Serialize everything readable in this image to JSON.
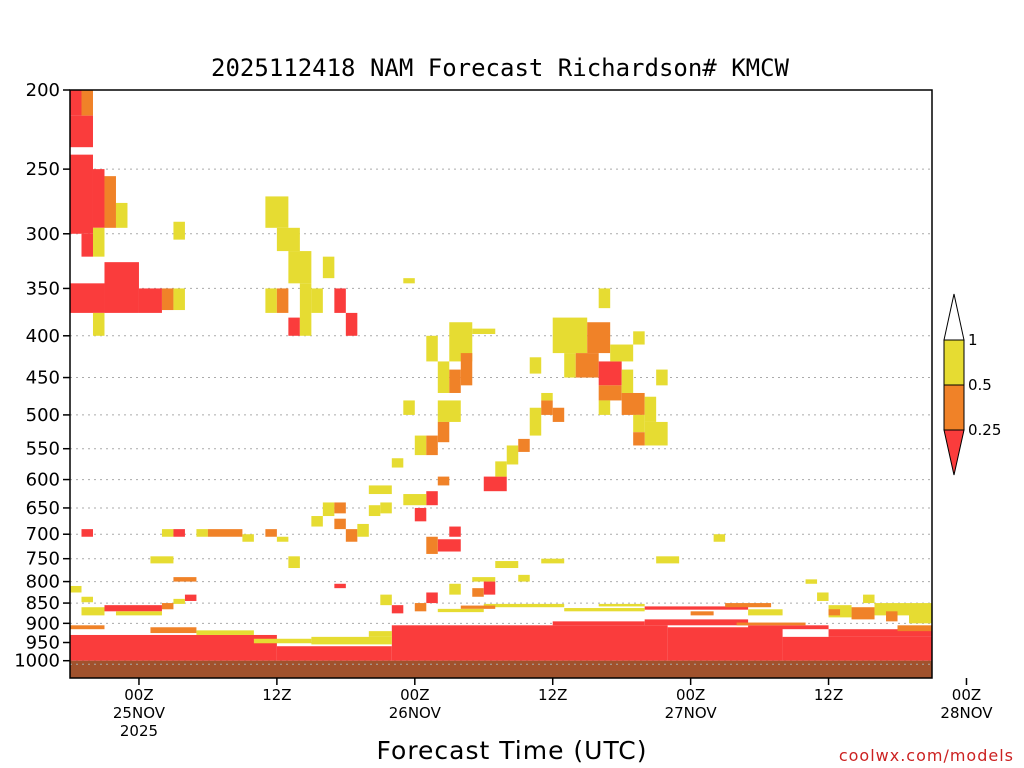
{
  "chart_data": {
    "type": "heatmap",
    "title": "2025112418 NAM Forecast Richardson# KMCW",
    "xlabel": "Forecast Time (UTC)",
    "ylabel": "Pressure (hPa)",
    "credit": "coolwx.com/models",
    "xlim_hours": [
      -6,
      69
    ],
    "ylim_hpa": [
      1050,
      200
    ],
    "y_ticks": [
      {
        "value": 200,
        "label": "200"
      },
      {
        "value": 250,
        "label": "250"
      },
      {
        "value": 300,
        "label": "300"
      },
      {
        "value": 350,
        "label": "350"
      },
      {
        "value": 400,
        "label": "400"
      },
      {
        "value": 450,
        "label": "450"
      },
      {
        "value": 500,
        "label": "500"
      },
      {
        "value": 550,
        "label": "550"
      },
      {
        "value": 600,
        "label": "600"
      },
      {
        "value": 650,
        "label": "650"
      },
      {
        "value": 700,
        "label": "700"
      },
      {
        "value": 750,
        "label": "750"
      },
      {
        "value": 800,
        "label": "800"
      },
      {
        "value": 850,
        "label": "850"
      },
      {
        "value": 900,
        "label": "900"
      },
      {
        "value": 950,
        "label": "950"
      },
      {
        "value": 1000,
        "label": "1000"
      }
    ],
    "x_ticks": [
      {
        "hour": 0,
        "lines": [
          "00Z",
          "25NOV",
          "2025"
        ]
      },
      {
        "hour": 12,
        "lines": [
          "12Z"
        ]
      },
      {
        "hour": 24,
        "lines": [
          "00Z",
          "26NOV"
        ]
      },
      {
        "hour": 36,
        "lines": [
          "12Z"
        ]
      },
      {
        "hour": 48,
        "lines": [
          "00Z",
          "27NOV"
        ]
      },
      {
        "hour": 60,
        "lines": [
          "12Z"
        ]
      },
      {
        "hour": 72,
        "lines": [
          "00Z",
          "28NOV"
        ]
      }
    ],
    "colorbar": {
      "levels": [
        "1",
        "0.5",
        "0.25"
      ],
      "bins": [
        {
          "label": "> 1",
          "color": "#ffffff"
        },
        {
          "label": "0.5 - 1",
          "color": "#e6dc32"
        },
        {
          "label": "0.25 - 0.5",
          "color": "#f08228"
        },
        {
          "label": "< 0.25",
          "color": "#fa3c3c"
        }
      ]
    },
    "colors": {
      "low": "#fa3c3c",
      "mid": "#f08228",
      "high": "#e6dc32",
      "ground": "#a0522d",
      "grid": "#aaaaaa"
    },
    "ground_level_hpa": 1010,
    "cells": [
      {
        "h0": -6,
        "h1": -5,
        "p0": 200,
        "p1": 215,
        "c": "low"
      },
      {
        "h0": -5,
        "h1": -4,
        "p0": 200,
        "p1": 215,
        "c": "mid"
      },
      {
        "h0": -6,
        "h1": -4,
        "p0": 215,
        "p1": 235,
        "c": "low"
      },
      {
        "h0": -6,
        "h1": -4,
        "p0": 240,
        "p1": 300,
        "c": "low"
      },
      {
        "h0": -4,
        "h1": -3,
        "p0": 250,
        "p1": 295,
        "c": "low"
      },
      {
        "h0": -3,
        "h1": -2,
        "p0": 255,
        "p1": 295,
        "c": "mid"
      },
      {
        "h0": -2,
        "h1": -1,
        "p0": 275,
        "p1": 295,
        "c": "high"
      },
      {
        "h0": -4,
        "h1": -3,
        "p0": 295,
        "p1": 320,
        "c": "high"
      },
      {
        "h0": -5,
        "h1": -4,
        "p0": 300,
        "p1": 320,
        "c": "low"
      },
      {
        "h0": -6,
        "h1": -3,
        "p0": 345,
        "p1": 375,
        "c": "low"
      },
      {
        "h0": -3,
        "h1": 0,
        "p0": 325,
        "p1": 375,
        "c": "low"
      },
      {
        "h0": 0,
        "h1": 2,
        "p0": 350,
        "p1": 375,
        "c": "low"
      },
      {
        "h0": 2,
        "h1": 3,
        "p0": 350,
        "p1": 372,
        "c": "mid"
      },
      {
        "h0": 3,
        "h1": 4,
        "p0": 350,
        "p1": 372,
        "c": "high"
      },
      {
        "h0": -4,
        "h1": -3,
        "p0": 375,
        "p1": 400,
        "c": "high"
      },
      {
        "h0": 3,
        "h1": 4,
        "p0": 290,
        "p1": 305,
        "c": "high"
      },
      {
        "h0": 11,
        "h1": 13,
        "p0": 270,
        "p1": 295,
        "c": "high"
      },
      {
        "h0": 12,
        "h1": 14,
        "p0": 295,
        "p1": 315,
        "c": "high"
      },
      {
        "h0": 13,
        "h1": 15,
        "p0": 315,
        "p1": 345,
        "c": "high"
      },
      {
        "h0": 16,
        "h1": 17,
        "p0": 320,
        "p1": 340,
        "c": "high"
      },
      {
        "h0": 11,
        "h1": 12,
        "p0": 350,
        "p1": 375,
        "c": "high"
      },
      {
        "h0": 12,
        "h1": 13,
        "p0": 350,
        "p1": 375,
        "c": "mid"
      },
      {
        "h0": 13,
        "h1": 14,
        "p0": 380,
        "p1": 400,
        "c": "low"
      },
      {
        "h0": 14,
        "h1": 15,
        "p0": 345,
        "p1": 400,
        "c": "high"
      },
      {
        "h0": 15,
        "h1": 16,
        "p0": 350,
        "p1": 375,
        "c": "high"
      },
      {
        "h0": 17,
        "h1": 18,
        "p0": 350,
        "p1": 375,
        "c": "low"
      },
      {
        "h0": 18,
        "h1": 19,
        "p0": 375,
        "p1": 400,
        "c": "low"
      },
      {
        "h0": 23,
        "h1": 24,
        "p0": 340,
        "p1": 345,
        "c": "high"
      },
      {
        "h0": 25,
        "h1": 26,
        "p0": 400,
        "p1": 430,
        "c": "high"
      },
      {
        "h0": 26,
        "h1": 27,
        "p0": 430,
        "p1": 470,
        "c": "high"
      },
      {
        "h0": 27,
        "h1": 29,
        "p0": 385,
        "p1": 430,
        "c": "high"
      },
      {
        "h0": 28,
        "h1": 29,
        "p0": 420,
        "p1": 460,
        "c": "mid"
      },
      {
        "h0": 27,
        "h1": 28,
        "p0": 440,
        "p1": 470,
        "c": "mid"
      },
      {
        "h0": 26,
        "h1": 28,
        "p0": 480,
        "p1": 510,
        "c": "high"
      },
      {
        "h0": 26,
        "h1": 27,
        "p0": 510,
        "p1": 540,
        "c": "mid"
      },
      {
        "h0": 23,
        "h1": 24,
        "p0": 480,
        "p1": 500,
        "c": "high"
      },
      {
        "h0": 24,
        "h1": 25,
        "p0": 530,
        "p1": 560,
        "c": "high"
      },
      {
        "h0": 25,
        "h1": 26,
        "p0": 530,
        "p1": 560,
        "c": "mid"
      },
      {
        "h0": 22,
        "h1": 23,
        "p0": 565,
        "p1": 580,
        "c": "high"
      },
      {
        "h0": 26,
        "h1": 27,
        "p0": 595,
        "p1": 610,
        "c": "mid"
      },
      {
        "h0": 25,
        "h1": 26,
        "p0": 620,
        "p1": 645,
        "c": "low"
      },
      {
        "h0": 24,
        "h1": 25,
        "p0": 650,
        "p1": 675,
        "c": "low"
      },
      {
        "h0": 27,
        "h1": 28,
        "p0": 685,
        "p1": 705,
        "c": "low"
      },
      {
        "h0": 26,
        "h1": 28,
        "p0": 710,
        "p1": 735,
        "c": "low"
      },
      {
        "h0": 25,
        "h1": 26,
        "p0": 705,
        "p1": 740,
        "c": "mid"
      },
      {
        "h0": 23,
        "h1": 25,
        "p0": 625,
        "p1": 645,
        "c": "high"
      },
      {
        "h0": 30,
        "h1": 32,
        "p0": 595,
        "p1": 620,
        "c": "low"
      },
      {
        "h0": 31,
        "h1": 32,
        "p0": 570,
        "p1": 595,
        "c": "high"
      },
      {
        "h0": 32,
        "h1": 33,
        "p0": 545,
        "p1": 575,
        "c": "high"
      },
      {
        "h0": 33,
        "h1": 34,
        "p0": 535,
        "p1": 555,
        "c": "mid"
      },
      {
        "h0": 34,
        "h1": 35,
        "p0": 490,
        "p1": 530,
        "c": "high"
      },
      {
        "h0": 35,
        "h1": 36,
        "p0": 480,
        "p1": 500,
        "c": "mid"
      },
      {
        "h0": 36,
        "h1": 37,
        "p0": 490,
        "p1": 510,
        "c": "mid"
      },
      {
        "h0": 35,
        "h1": 36,
        "p0": 470,
        "p1": 480,
        "c": "high"
      },
      {
        "h0": 34,
        "h1": 35,
        "p0": 425,
        "p1": 445,
        "c": "high"
      },
      {
        "h0": 36,
        "h1": 39,
        "p0": 380,
        "p1": 420,
        "c": "high"
      },
      {
        "h0": 37,
        "h1": 38,
        "p0": 420,
        "p1": 450,
        "c": "high"
      },
      {
        "h0": 38,
        "h1": 40,
        "p0": 420,
        "p1": 450,
        "c": "mid"
      },
      {
        "h0": 39,
        "h1": 41,
        "p0": 385,
        "p1": 420,
        "c": "mid"
      },
      {
        "h0": 40,
        "h1": 42,
        "p0": 430,
        "p1": 460,
        "c": "low"
      },
      {
        "h0": 41,
        "h1": 43,
        "p0": 410,
        "p1": 430,
        "c": "high"
      },
      {
        "h0": 40,
        "h1": 42,
        "p0": 460,
        "p1": 480,
        "c": "mid"
      },
      {
        "h0": 42,
        "h1": 44,
        "p0": 470,
        "p1": 500,
        "c": "mid"
      },
      {
        "h0": 40,
        "h1": 41,
        "p0": 480,
        "p1": 500,
        "c": "high"
      },
      {
        "h0": 42,
        "h1": 43,
        "p0": 440,
        "p1": 470,
        "c": "high"
      },
      {
        "h0": 44,
        "h1": 45,
        "p0": 475,
        "p1": 510,
        "c": "high"
      },
      {
        "h0": 43,
        "h1": 44,
        "p0": 500,
        "p1": 525,
        "c": "high"
      },
      {
        "h0": 44,
        "h1": 46,
        "p0": 510,
        "p1": 545,
        "c": "high"
      },
      {
        "h0": 43,
        "h1": 44,
        "p0": 525,
        "p1": 545,
        "c": "mid"
      },
      {
        "h0": 40,
        "h1": 41,
        "p0": 350,
        "p1": 370,
        "c": "high"
      },
      {
        "h0": 43,
        "h1": 44,
        "p0": 395,
        "p1": 410,
        "c": "high"
      },
      {
        "h0": 45,
        "h1": 46,
        "p0": 440,
        "p1": 460,
        "c": "high"
      },
      {
        "h0": 29,
        "h1": 31,
        "p0": 392,
        "p1": 398,
        "c": "high"
      },
      {
        "h0": 17,
        "h1": 18,
        "p0": 670,
        "p1": 690,
        "c": "mid"
      },
      {
        "h0": 18,
        "h1": 19,
        "p0": 690,
        "p1": 715,
        "c": "mid"
      },
      {
        "h0": 19,
        "h1": 20,
        "p0": 680,
        "p1": 705,
        "c": "high"
      },
      {
        "h0": 16,
        "h1": 17,
        "p0": 640,
        "p1": 665,
        "c": "high"
      },
      {
        "h0": 17,
        "h1": 18,
        "p0": 640,
        "p1": 660,
        "c": "mid"
      },
      {
        "h0": 20,
        "h1": 21,
        "p0": 645,
        "p1": 665,
        "c": "high"
      },
      {
        "h0": 21,
        "h1": 22,
        "p0": 640,
        "p1": 660,
        "c": "high"
      },
      {
        "h0": 15,
        "h1": 16,
        "p0": 665,
        "p1": 685,
        "c": "high"
      },
      {
        "h0": 20,
        "h1": 22,
        "p0": 610,
        "p1": 625,
        "c": "high"
      },
      {
        "h0": 13,
        "h1": 14,
        "p0": 745,
        "p1": 770,
        "c": "high"
      },
      {
        "h0": 17,
        "h1": 18,
        "p0": 805,
        "p1": 815,
        "c": "low"
      },
      {
        "h0": -5,
        "h1": -4,
        "p0": 690,
        "p1": 705,
        "c": "low"
      },
      {
        "h0": 2,
        "h1": 3,
        "p0": 690,
        "p1": 705,
        "c": "high"
      },
      {
        "h0": 3,
        "h1": 4,
        "p0": 690,
        "p1": 705,
        "c": "low"
      },
      {
        "h0": 5,
        "h1": 6,
        "p0": 690,
        "p1": 705,
        "c": "high"
      },
      {
        "h0": 6,
        "h1": 9,
        "p0": 690,
        "p1": 705,
        "c": "mid"
      },
      {
        "h0": 9,
        "h1": 10,
        "p0": 700,
        "p1": 715,
        "c": "high"
      },
      {
        "h0": 11,
        "h1": 12,
        "p0": 690,
        "p1": 705,
        "c": "mid"
      },
      {
        "h0": 12,
        "h1": 13,
        "p0": 705,
        "p1": 715,
        "c": "high"
      },
      {
        "h0": 1,
        "h1": 3,
        "p0": 745,
        "p1": 760,
        "c": "high"
      },
      {
        "h0": 3,
        "h1": 5,
        "p0": 790,
        "p1": 800,
        "c": "mid"
      },
      {
        "h0": 4,
        "h1": 5,
        "p0": 830,
        "p1": 845,
        "c": "low"
      },
      {
        "h0": 45,
        "h1": 47,
        "p0": 745,
        "p1": 760,
        "c": "high"
      },
      {
        "h0": 50,
        "h1": 51,
        "p0": 700,
        "p1": 715,
        "c": "high"
      },
      {
        "h0": 31,
        "h1": 33,
        "p0": 755,
        "p1": 770,
        "c": "high"
      },
      {
        "h0": 33,
        "h1": 34,
        "p0": 785,
        "p1": 800,
        "c": "high"
      },
      {
        "h0": 35,
        "h1": 37,
        "p0": 750,
        "p1": 760,
        "c": "high"
      },
      {
        "h0": 29,
        "h1": 31,
        "p0": 790,
        "p1": 800,
        "c": "high"
      },
      {
        "h0": 30,
        "h1": 31,
        "p0": 800,
        "p1": 830,
        "c": "low"
      },
      {
        "h0": 29,
        "h1": 30,
        "p0": 815,
        "p1": 835,
        "c": "mid"
      },
      {
        "h0": 27,
        "h1": 28,
        "p0": 805,
        "p1": 830,
        "c": "high"
      },
      {
        "h0": 21,
        "h1": 22,
        "p0": 830,
        "p1": 855,
        "c": "high"
      },
      {
        "h0": 22,
        "h1": 23,
        "p0": 855,
        "p1": 875,
        "c": "low"
      },
      {
        "h0": 24,
        "h1": 25,
        "p0": 850,
        "p1": 870,
        "c": "mid"
      },
      {
        "h0": 25,
        "h1": 26,
        "p0": 825,
        "p1": 850,
        "c": "low"
      },
      {
        "h0": 62,
        "h1": 64,
        "p0": 860,
        "p1": 890,
        "c": "mid"
      },
      {
        "h0": 64,
        "h1": 67,
        "p0": 850,
        "p1": 880,
        "c": "high"
      },
      {
        "h0": 67,
        "h1": 71,
        "p0": 850,
        "p1": 900,
        "c": "high"
      },
      {
        "h0": 71,
        "h1": 74,
        "p0": 860,
        "p1": 905,
        "c": "high"
      },
      {
        "h0": 74,
        "h1": 77,
        "p0": 875,
        "p1": 905,
        "c": "high"
      },
      {
        "h0": 60,
        "h1": 62,
        "p0": 855,
        "p1": 885,
        "c": "high"
      },
      {
        "h0": 59,
        "h1": 60,
        "p0": 825,
        "p1": 845,
        "c": "high"
      },
      {
        "h0": 58,
        "h1": 59,
        "p0": 795,
        "p1": 805,
        "c": "high"
      },
      {
        "h0": 63,
        "h1": 64,
        "p0": 830,
        "p1": 850,
        "c": "high"
      },
      {
        "h0": 65,
        "h1": 66,
        "p0": 870,
        "p1": 895,
        "c": "mid"
      },
      {
        "h0": 60,
        "h1": 61,
        "p0": 865,
        "p1": 880,
        "c": "mid"
      },
      {
        "h0": 73,
        "h1": 74,
        "p0": 880,
        "p1": 895,
        "c": "mid"
      },
      {
        "h0": 44,
        "h1": 53,
        "p0": 858,
        "p1": 866,
        "c": "low"
      },
      {
        "h0": 37,
        "h1": 44,
        "p0": 862,
        "p1": 870,
        "c": "high"
      },
      {
        "h0": 40,
        "h1": 44,
        "p0": 852,
        "p1": 858,
        "c": "high"
      },
      {
        "h0": 51,
        "h1": 55,
        "p0": 850,
        "p1": 860,
        "c": "mid"
      },
      {
        "h0": 53,
        "h1": 56,
        "p0": 865,
        "p1": 880,
        "c": "high"
      },
      {
        "h0": 48,
        "h1": 50,
        "p0": 870,
        "p1": 880,
        "c": "mid"
      },
      {
        "h0": 30,
        "h1": 37,
        "p0": 852,
        "p1": 860,
        "c": "high"
      },
      {
        "h0": 28,
        "h1": 31,
        "p0": 856,
        "p1": 864,
        "c": "mid"
      },
      {
        "h0": 26,
        "h1": 30,
        "p0": 864,
        "p1": 872,
        "c": "high"
      },
      {
        "h0": -5,
        "h1": -3,
        "p0": 860,
        "p1": 880,
        "c": "high"
      },
      {
        "h0": -3,
        "h1": 2,
        "p0": 855,
        "p1": 870,
        "c": "low"
      },
      {
        "h0": 2,
        "h1": 3,
        "p0": 850,
        "p1": 865,
        "c": "mid"
      },
      {
        "h0": -2,
        "h1": 2,
        "p0": 870,
        "p1": 880,
        "c": "high"
      },
      {
        "h0": 3,
        "h1": 4,
        "p0": 840,
        "p1": 852,
        "c": "high"
      },
      {
        "h0": -6,
        "h1": -5,
        "p0": 810,
        "p1": 825,
        "c": "high"
      },
      {
        "h0": -5,
        "h1": -4,
        "p0": 835,
        "p1": 848,
        "c": "high"
      },
      {
        "h0": -6,
        "h1": 12,
        "p0": 930,
        "p1": 1000,
        "c": "low"
      },
      {
        "h0": 12,
        "h1": 22,
        "p0": 960,
        "p1": 1000,
        "c": "low"
      },
      {
        "h0": 22,
        "h1": 46,
        "p0": 905,
        "p1": 1000,
        "c": "low"
      },
      {
        "h0": 46,
        "h1": 56,
        "p0": 910,
        "p1": 1000,
        "c": "low"
      },
      {
        "h0": 56,
        "h1": 69,
        "p0": 935,
        "p1": 1000,
        "c": "low"
      },
      {
        "h0": 44,
        "h1": 53,
        "p0": 890,
        "p1": 905,
        "c": "low"
      },
      {
        "h0": 36,
        "h1": 44,
        "p0": 895,
        "p1": 905,
        "c": "low"
      },
      {
        "h0": 53,
        "h1": 60,
        "p0": 905,
        "p1": 915,
        "c": "low"
      },
      {
        "h0": 60,
        "h1": 69,
        "p0": 915,
        "p1": 935,
        "c": "low"
      },
      {
        "h0": 66,
        "h1": 72,
        "p0": 905,
        "p1": 920,
        "c": "mid"
      },
      {
        "h0": 52,
        "h1": 58,
        "p0": 898,
        "p1": 905,
        "c": "mid"
      },
      {
        "h0": -6,
        "h1": -3,
        "p0": 905,
        "p1": 915,
        "c": "mid"
      },
      {
        "h0": 1,
        "h1": 5,
        "p0": 910,
        "p1": 925,
        "c": "mid"
      },
      {
        "h0": 5,
        "h1": 10,
        "p0": 918,
        "p1": 930,
        "c": "high"
      },
      {
        "h0": 10,
        "h1": 15,
        "p0": 940,
        "p1": 952,
        "c": "high"
      },
      {
        "h0": 15,
        "h1": 22,
        "p0": 935,
        "p1": 955,
        "c": "high"
      },
      {
        "h0": 20,
        "h1": 22,
        "p0": 920,
        "p1": 935,
        "c": "high"
      },
      {
        "h0": 76,
        "h1": 79,
        "p0": 912,
        "p1": 925,
        "c": "high"
      },
      {
        "h0": 76,
        "h1": 79,
        "p0": 930,
        "p1": 945,
        "c": "mid"
      },
      {
        "h0": -6,
        "h1": 69,
        "p0": 1000,
        "p1": 1050,
        "c": "ground"
      }
    ]
  }
}
